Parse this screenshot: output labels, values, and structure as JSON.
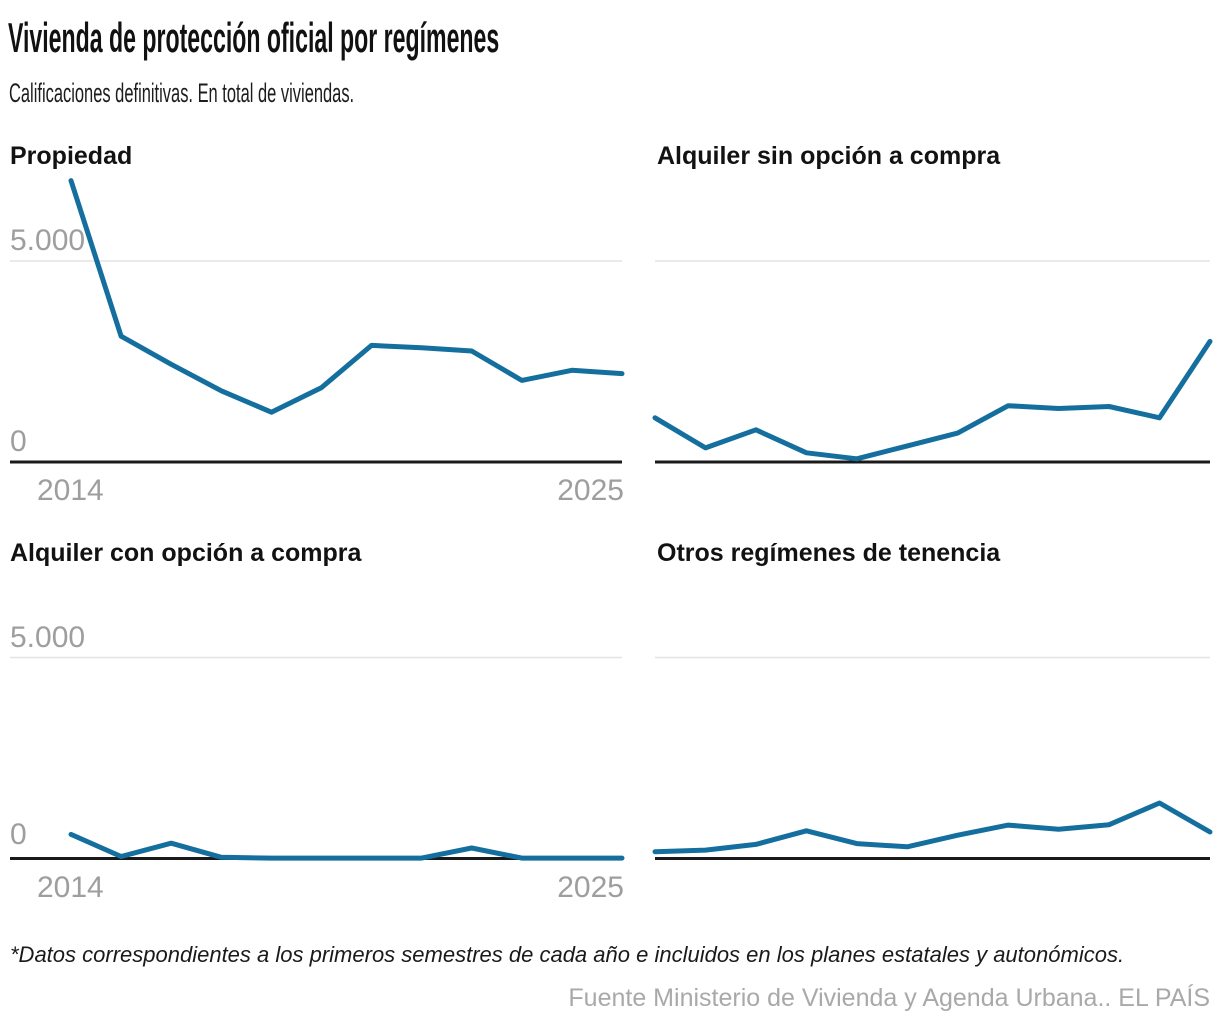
{
  "header": {
    "title": "Vivienda de protección oficial por regímenes",
    "subtitle": "Calificaciones definitivas. En total de viviendas."
  },
  "chart_data": [
    {
      "type": "line",
      "title": "Propiedad",
      "x": [
        2014,
        2015,
        2016,
        2017,
        2018,
        2019,
        2020,
        2021,
        2022,
        2023,
        2024,
        2025
      ],
      "values": [
        7000,
        3130,
        2430,
        1770,
        1240,
        1850,
        2900,
        2840,
        2760,
        2030,
        2280,
        2200
      ],
      "grid_value": 5000,
      "ylim": [
        0,
        7800
      ],
      "y_tick_labels": [
        "5.000",
        "0"
      ],
      "x_tick_labels": [
        "2014",
        "2025"
      ]
    },
    {
      "type": "line",
      "title": "Alquiler sin opción a compra",
      "x": [
        2014,
        2015,
        2016,
        2017,
        2018,
        2019,
        2020,
        2021,
        2022,
        2023,
        2024,
        2025
      ],
      "values": [
        1100,
        350,
        800,
        230,
        80,
        400,
        720,
        1400,
        1330,
        1380,
        1100,
        3000
      ],
      "grid_value": 5000,
      "ylim": [
        0,
        7800
      ],
      "y_tick_labels": [],
      "x_tick_labels": []
    },
    {
      "type": "line",
      "title": "Alquiler con opción a compra",
      "x": [
        2014,
        2015,
        2016,
        2017,
        2018,
        2019,
        2020,
        2021,
        2022,
        2023,
        2024,
        2025
      ],
      "values": [
        600,
        50,
        380,
        30,
        10,
        10,
        10,
        10,
        260,
        10,
        10,
        10
      ],
      "grid_value": 5000,
      "ylim": [
        0,
        7800
      ],
      "y_tick_labels": [
        "5.000",
        "0"
      ],
      "x_tick_labels": [
        "2014",
        "2025"
      ]
    },
    {
      "type": "line",
      "title": "Otros regímenes de tenencia",
      "x": [
        2014,
        2015,
        2016,
        2017,
        2018,
        2019,
        2020,
        2021,
        2022,
        2023,
        2024,
        2025
      ],
      "values": [
        170,
        210,
        350,
        690,
        370,
        290,
        580,
        830,
        730,
        840,
        1380,
        660
      ],
      "grid_value": 5000,
      "ylim": [
        0,
        7800
      ],
      "y_tick_labels": [],
      "x_tick_labels": []
    }
  ],
  "footer": {
    "note": "*Datos correspondientes a los primeros semestres de cada año e incluidos en los planes estatales y autonómicos.",
    "source": "Fuente Ministerio de Vivienda y Agenda Urbana.. EL PAÍS"
  },
  "colors": {
    "line": "#156f9e",
    "axis": "#1a1a1a",
    "grid": "#e3e3e3",
    "tick_label": "#9e9e9e",
    "title": "#111111"
  }
}
